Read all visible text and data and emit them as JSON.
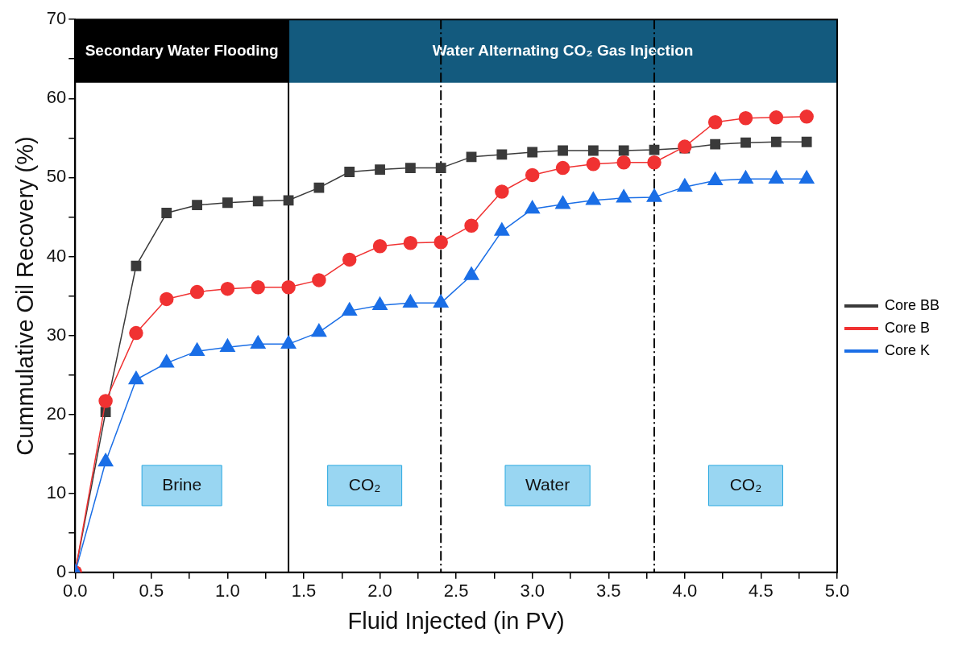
{
  "chart_data": {
    "type": "line",
    "xlabel": "Fluid Injected (in PV)",
    "ylabel": "Cummulative Oil Recovery (%)",
    "x": [
      0,
      0.2,
      0.4,
      0.6,
      0.8,
      1.0,
      1.2,
      1.4,
      1.6,
      1.8,
      2.0,
      2.2,
      2.4,
      2.6,
      2.8,
      3.0,
      3.2,
      3.4,
      3.6,
      3.8,
      4.0,
      4.2,
      4.4,
      4.6,
      4.8
    ],
    "series": [
      {
        "name": "Core BB",
        "color": "#3a3a3a",
        "marker": "square",
        "values": [
          0,
          20.3,
          38.8,
          45.5,
          46.5,
          46.8,
          47.0,
          47.1,
          48.7,
          50.7,
          51.0,
          51.2,
          51.2,
          52.6,
          52.9,
          53.2,
          53.4,
          53.4,
          53.4,
          53.5,
          53.7,
          54.2,
          54.4,
          54.5,
          54.5
        ]
      },
      {
        "name": "Core B",
        "color": "#f03232",
        "marker": "circle",
        "values": [
          0,
          21.7,
          30.3,
          34.6,
          35.5,
          35.9,
          36.1,
          36.1,
          37.0,
          39.6,
          41.3,
          41.7,
          41.8,
          43.9,
          48.2,
          50.3,
          51.2,
          51.7,
          51.9,
          51.9,
          53.9,
          57.0,
          57.5,
          57.6,
          57.7
        ]
      },
      {
        "name": "Core K",
        "color": "#1a6ee6",
        "marker": "triangle",
        "values": [
          0,
          14.0,
          24.4,
          26.5,
          28.0,
          28.5,
          28.9,
          28.9,
          30.4,
          33.1,
          33.8,
          34.1,
          34.1,
          37.6,
          43.2,
          46.0,
          46.6,
          47.1,
          47.4,
          47.5,
          48.8,
          49.6,
          49.8,
          49.8,
          49.8
        ]
      }
    ],
    "xlim": [
      0,
      5
    ],
    "xticks": [
      {
        "value": 0,
        "label": "0.0"
      },
      {
        "value": 0.25,
        "label": null
      },
      {
        "value": 0.5,
        "label": "0.5"
      },
      {
        "value": 0.75,
        "label": null
      },
      {
        "value": 1,
        "label": "1.0"
      },
      {
        "value": 1.25,
        "label": null
      },
      {
        "value": 1.5,
        "label": "1.5"
      },
      {
        "value": 1.75,
        "label": null
      },
      {
        "value": 2,
        "label": "2.0"
      },
      {
        "value": 2.25,
        "label": null
      },
      {
        "value": 2.5,
        "label": "2.5"
      },
      {
        "value": 2.75,
        "label": null
      },
      {
        "value": 3,
        "label": "3.0"
      },
      {
        "value": 3.25,
        "label": null
      },
      {
        "value": 3.5,
        "label": "3.5"
      },
      {
        "value": 3.75,
        "label": null
      },
      {
        "value": 4,
        "label": "4.0"
      },
      {
        "value": 4.25,
        "label": null
      },
      {
        "value": 4.5,
        "label": "4.5"
      },
      {
        "value": 4.75,
        "label": null
      },
      {
        "value": 5,
        "label": "5.0"
      }
    ],
    "ylim": [
      0,
      70
    ],
    "yticks": [
      0,
      {
        "value": 5,
        "label": null
      },
      10,
      {
        "value": 15,
        "label": null
      },
      20,
      {
        "value": 25,
        "label": null
      },
      30,
      {
        "value": 35,
        "label": null
      },
      40,
      {
        "value": 45,
        "label": null
      },
      50,
      {
        "value": 55,
        "label": null
      },
      60,
      {
        "value": 65,
        "label": null
      },
      70
    ],
    "ref_lines": [
      {
        "axis": "x",
        "value": 1.4,
        "color": "#000000",
        "line_style": "solid"
      },
      {
        "axis": "x",
        "value": 2.4,
        "color": "#000000",
        "line_style": "dashdot"
      },
      {
        "axis": "x",
        "value": 3.8,
        "color": "#000000",
        "line_style": "dashdot"
      }
    ],
    "bands": [
      {
        "axis": "x",
        "from": 0,
        "to": 1.4,
        "label": "Secondary Water Flooding",
        "color": "#000000"
      },
      {
        "axis": "x",
        "from": 1.4,
        "to": 5,
        "label": "Water Alternating CO₂ Gas Injection",
        "color": "#135a7e"
      }
    ],
    "annotations": [
      "Brine",
      "CO₂",
      "Water",
      "CO₂"
    ],
    "grid": false,
    "legend": "right",
    "line_style": "solid"
  }
}
